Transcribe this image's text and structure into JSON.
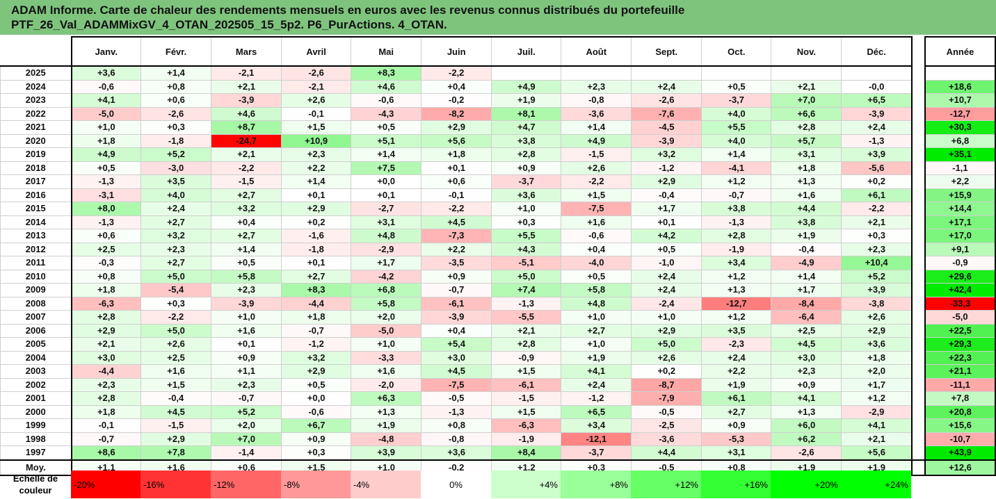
{
  "title": {
    "line1": "ADAM Informe. Carte de chaleur des rendements mensuels en euros avec les revenus connus distribués du portefeuille",
    "line2": "PTF_26_Val_ADAMMixGV_4_OTAN_202505_15_5p2. P6_PurActions. 4_OTAN."
  },
  "chart_data": {
    "type": "heatmap",
    "title": "ADAM Informe. Carte de chaleur des rendements mensuels en euros avec les revenus connus distribués du portefeuille PTF_26_Val_ADAMMixGV_4_OTAN_202505_15_5p2. P6_PurActions. 4_OTAN.",
    "columns": [
      "Janv.",
      "Févr.",
      "Mars",
      "Avril",
      "Mai",
      "Juin",
      "Juil.",
      "Août",
      "Sept.",
      "Oct.",
      "Nov.",
      "Déc."
    ],
    "year_column": "Année",
    "rows": [
      {
        "year": "2025",
        "months": [
          "+3,6",
          "+1,4",
          "-2,1",
          "-2,6",
          "+8,3",
          "-2,2",
          "",
          "",
          "",
          "",
          "",
          ""
        ],
        "year_value": ""
      },
      {
        "year": "2024",
        "months": [
          "-0,6",
          "+0,8",
          "+2,1",
          "-2,1",
          "+4,6",
          "+0,4",
          "+4,9",
          "+2,3",
          "+2,4",
          "+0,5",
          "+2,1",
          "-0,0"
        ],
        "year_value": "+18,6"
      },
      {
        "year": "2023",
        "months": [
          "+4,1",
          "+0,6",
          "-3,9",
          "+2,6",
          "-0,6",
          "-0,2",
          "+1,9",
          "-0,8",
          "-2,6",
          "-3,7",
          "+7,0",
          "+6,5"
        ],
        "year_value": "+10,7"
      },
      {
        "year": "2022",
        "months": [
          "-5,0",
          "-2,6",
          "+4,6",
          "-0,1",
          "-4,3",
          "-8,2",
          "+8,1",
          "-3,6",
          "-7,6",
          "+4,0",
          "+6,6",
          "-3,9"
        ],
        "year_value": "-12,7"
      },
      {
        "year": "2021",
        "months": [
          "+1,0",
          "+0,3",
          "+8,7",
          "+1,5",
          "+0,5",
          "+2,9",
          "+4,7",
          "+1,4",
          "-4,5",
          "+5,5",
          "+2,8",
          "+2,4"
        ],
        "year_value": "+30,3"
      },
      {
        "year": "2020",
        "months": [
          "+1,8",
          "-1,8",
          "-24,7",
          "+10,9",
          "+5,1",
          "+5,6",
          "+3,8",
          "+4,9",
          "-3,9",
          "+4,0",
          "+5,7",
          "-1,3"
        ],
        "year_value": "+6,8"
      },
      {
        "year": "2019",
        "months": [
          "+4,9",
          "+5,2",
          "+2,1",
          "+2,3",
          "+1,4",
          "+1,8",
          "+2,8",
          "-1,5",
          "+3,2",
          "+1,4",
          "+3,1",
          "+3,9"
        ],
        "year_value": "+35,1"
      },
      {
        "year": "2018",
        "months": [
          "+0,5",
          "-3,0",
          "-2,2",
          "+2,2",
          "+7,5",
          "+0,1",
          "+0,9",
          "+2,6",
          "-1,2",
          "-4,1",
          "+1,8",
          "-5,6"
        ],
        "year_value": "-1,1"
      },
      {
        "year": "2017",
        "months": [
          "-1,3",
          "+3,5",
          "-1,5",
          "+1,4",
          "+0,0",
          "+0,6",
          "-3,7",
          "-2,2",
          "+2,9",
          "+1,2",
          "+1,3",
          "+0,2"
        ],
        "year_value": "+2,2"
      },
      {
        "year": "2016",
        "months": [
          "-3,1",
          "+4,0",
          "+2,7",
          "+0,1",
          "+0,1",
          "-0,1",
          "+3,6",
          "+1,5",
          "-0,4",
          "-0,7",
          "+1,6",
          "+6,1"
        ],
        "year_value": "+15,9"
      },
      {
        "year": "2015",
        "months": [
          "+8,0",
          "+2,4",
          "+3,2",
          "+2,9",
          "-2,7",
          "-2,2",
          "+1,0",
          "-7,5",
          "+1,7",
          "+3,8",
          "+4,4",
          "-2,2"
        ],
        "year_value": "+14,4"
      },
      {
        "year": "2014",
        "months": [
          "-1,3",
          "+2,7",
          "+0,4",
          "+0,2",
          "+3,1",
          "+4,5",
          "+0,3",
          "+1,6",
          "+0,1",
          "-1,3",
          "+3,8",
          "+2,1"
        ],
        "year_value": "+17,1"
      },
      {
        "year": "2013",
        "months": [
          "+0,6",
          "+3,2",
          "+2,7",
          "-1,6",
          "+4,8",
          "-7,3",
          "+5,5",
          "-0,6",
          "+4,2",
          "+2,8",
          "+1,9",
          "+0,3"
        ],
        "year_value": "+17,0"
      },
      {
        "year": "2012",
        "months": [
          "+2,5",
          "+2,3",
          "+1,4",
          "-1,8",
          "-2,9",
          "+2,2",
          "+4,3",
          "+0,4",
          "+0,5",
          "-1,9",
          "-0,4",
          "+2,3"
        ],
        "year_value": "+9,1"
      },
      {
        "year": "2011",
        "months": [
          "-0,3",
          "+2,7",
          "+0,5",
          "+0,1",
          "+1,7",
          "-3,5",
          "-5,1",
          "-4,0",
          "-1,0",
          "+3,4",
          "-4,9",
          "+10,4"
        ],
        "year_value": "-0,9"
      },
      {
        "year": "2010",
        "months": [
          "+0,8",
          "+5,0",
          "+5,8",
          "+2,7",
          "-4,2",
          "+0,9",
          "+5,0",
          "+0,5",
          "+2,4",
          "+1,2",
          "+1,4",
          "+5,2"
        ],
        "year_value": "+29,6"
      },
      {
        "year": "2009",
        "months": [
          "+1,8",
          "-5,4",
          "+2,3",
          "+8,3",
          "+6,8",
          "-0,7",
          "+7,4",
          "+5,8",
          "+2,4",
          "+1,3",
          "+1,7",
          "+3,9"
        ],
        "year_value": "+42,4"
      },
      {
        "year": "2008",
        "months": [
          "-6,3",
          "+0,3",
          "-3,9",
          "-4,4",
          "+5,8",
          "-6,1",
          "-1,3",
          "+4,8",
          "-2,4",
          "-12,7",
          "-8,4",
          "-3,8"
        ],
        "year_value": "-33,3"
      },
      {
        "year": "2007",
        "months": [
          "+2,8",
          "-2,2",
          "+1,0",
          "+1,8",
          "+2,0",
          "-3,9",
          "-5,5",
          "+1,0",
          "+1,0",
          "+1,2",
          "-6,4",
          "+2,6"
        ],
        "year_value": "-5,0"
      },
      {
        "year": "2006",
        "months": [
          "+2,9",
          "+5,0",
          "+1,6",
          "-0,7",
          "-5,0",
          "+0,4",
          "+2,1",
          "+2,7",
          "+2,9",
          "+3,5",
          "+2,5",
          "+2,9"
        ],
        "year_value": "+22,5"
      },
      {
        "year": "2005",
        "months": [
          "+2,1",
          "+2,6",
          "+0,1",
          "-1,2",
          "+1,0",
          "+5,4",
          "+2,8",
          "+1,0",
          "+5,0",
          "-2,3",
          "+4,5",
          "+3,6"
        ],
        "year_value": "+29,3"
      },
      {
        "year": "2004",
        "months": [
          "+3,0",
          "+2,5",
          "+0,9",
          "+3,2",
          "-3,3",
          "+3,0",
          "-0,9",
          "+1,9",
          "+2,6",
          "+2,4",
          "+3,0",
          "+1,8"
        ],
        "year_value": "+22,3"
      },
      {
        "year": "2003",
        "months": [
          "-4,4",
          "+1,6",
          "+1,1",
          "+2,9",
          "+1,6",
          "+4,5",
          "+1,5",
          "+4,1",
          "+0,2",
          "+2,2",
          "+2,3",
          "+2,0"
        ],
        "year_value": "+21,1"
      },
      {
        "year": "2002",
        "months": [
          "+2,3",
          "+1,5",
          "+2,3",
          "+0,5",
          "-2,0",
          "-7,5",
          "-6,1",
          "+2,4",
          "-8,7",
          "+1,9",
          "+0,9",
          "+1,7"
        ],
        "year_value": "-11,1"
      },
      {
        "year": "2001",
        "months": [
          "+2,8",
          "-0,4",
          "-0,7",
          "+0,0",
          "+6,3",
          "-0,5",
          "-1,5",
          "-1,2",
          "-7,9",
          "+6,1",
          "+4,1",
          "+1,2"
        ],
        "year_value": "+7,8"
      },
      {
        "year": "2000",
        "months": [
          "+1,8",
          "+4,5",
          "+5,2",
          "-0,6",
          "+1,3",
          "-1,3",
          "+1,5",
          "+6,5",
          "-0,5",
          "+2,7",
          "+1,3",
          "-2,9"
        ],
        "year_value": "+20,8"
      },
      {
        "year": "1999",
        "months": [
          "-0,1",
          "-1,5",
          "+2,0",
          "+6,7",
          "+1,9",
          "+0,8",
          "-6,3",
          "+3,4",
          "-2,5",
          "+0,9",
          "+6,0",
          "+4,1"
        ],
        "year_value": "+15,6"
      },
      {
        "year": "1998",
        "months": [
          "-0,7",
          "+2,9",
          "+7,0",
          "+0,9",
          "-4,8",
          "-0,8",
          "-1,9",
          "-12,1",
          "-3,6",
          "-5,3",
          "+6,2",
          "+2,1"
        ],
        "year_value": "-10,7"
      },
      {
        "year": "1997",
        "months": [
          "+8,6",
          "+7,8",
          "-1,4",
          "+0,3",
          "+3,9",
          "+3,6",
          "+8,4",
          "-3,7",
          "+4,4",
          "+3,1",
          "-2,6",
          "+5,6"
        ],
        "year_value": "+43,9"
      }
    ],
    "average_row": {
      "label": "Moy.",
      "months": [
        "+1,1",
        "+1,6",
        "+0,6",
        "+1,5",
        "+1,0",
        "-0,2",
        "+1,2",
        "+0,3",
        "-0,5",
        "+0,8",
        "+1,9",
        "+1,9"
      ],
      "year_value": "+12,6"
    },
    "scale": {
      "label": "Echelle de couleur",
      "ticks": [
        {
          "text": "-20%",
          "value": -20,
          "color": "#ff0000"
        },
        {
          "text": "-16%",
          "value": -16,
          "color": "#ff3333"
        },
        {
          "text": "-12%",
          "value": -12,
          "color": "#ff6666"
        },
        {
          "text": "-8%",
          "value": -8,
          "color": "#ff9999"
        },
        {
          "text": "-4%",
          "value": -4,
          "color": "#ffcccc"
        },
        {
          "text": "0%",
          "value": 0,
          "color": "#ffffff"
        },
        {
          "text": "+4%",
          "value": 4,
          "color": "#ccffcc"
        },
        {
          "text": "+8%",
          "value": 8,
          "color": "#99ff99"
        },
        {
          "text": "+12%",
          "value": 12,
          "color": "#66ff66"
        },
        {
          "text": "+16%",
          "value": 16,
          "color": "#33ff33"
        },
        {
          "text": "+20%",
          "value": 20,
          "color": "#00ff00"
        },
        {
          "text": "+24%",
          "value": 24,
          "color": "#00ff00"
        }
      ]
    },
    "colors": {
      "negative_max": "#ff0000",
      "neutral": "#ffffff",
      "positive_max": "#00e600"
    }
  }
}
